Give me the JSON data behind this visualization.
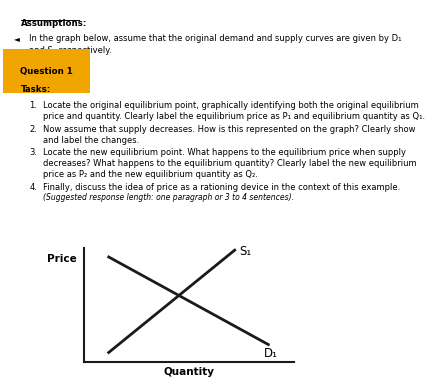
{
  "assumptions_label": "Assumptions:",
  "intro_line1": "In the graph below, assume that the original demand and supply curves are given by D₁",
  "intro_line2": "and S₁ respectively.",
  "question_label": "Question 1",
  "tasks_label": "Tasks:",
  "task1_num": "1.",
  "task1_line1": "Locate the original equilibrium point, graphically identifying both the original equilibrium",
  "task1_line2": "price and quantity. Clearly label the equilibrium price as P₁ and equilibrium quantity as Q₁.",
  "task2_num": "2.",
  "task2_line1": "Now assume that supply decreases. How is this represented on the graph? Clearly show",
  "task2_line2": "and label the changes.",
  "task3_num": "3.",
  "task3_line1": "Locate the new equilibrium point. What happens to the equilibrium price when supply",
  "task3_line2": "decreases? What happens to the equilibrium quantity? Clearly label the new equilibrium",
  "task3_line3": "price as P₂ and the new equilibrium quantity as Q₂.",
  "task4_num": "4.",
  "task4_line1": "Finally, discuss the idea of price as a rationing device in the context of this example.",
  "task4_line2": "(Suggested response length: one paragraph or 3 to 4 sentences).",
  "price_label": "Price",
  "quantity_label": "Quantity",
  "s1_label": "S₁",
  "d1_label": "D₁",
  "bullet": "◄",
  "bg_color": "#ffffff",
  "text_color": "#000000",
  "line_color": "#1a1a1a",
  "question_bg": "#f0a500",
  "fs_main": 6.0,
  "fs_bold": 6.2,
  "fs_small": 5.5
}
